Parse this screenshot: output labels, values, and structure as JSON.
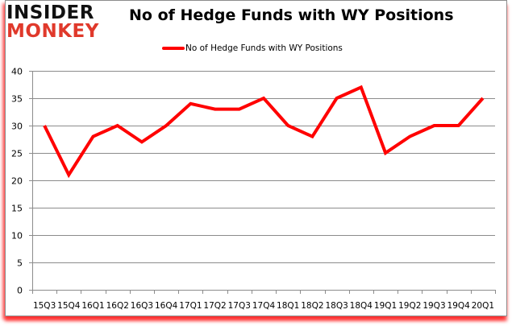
{
  "branding": {
    "logo_line1": "INSIDER",
    "logo_line2": "MONKEY"
  },
  "colors": {
    "series": "#ff0000",
    "logo_accent": "#e0392b",
    "grid": "#8c8c8c"
  },
  "chart_data": {
    "type": "line",
    "title": "No of Hedge Funds with WY Positions",
    "xlabel": "",
    "ylabel": "",
    "ylim": [
      0,
      40
    ],
    "yticks": [
      0,
      5,
      10,
      15,
      20,
      25,
      30,
      35,
      40
    ],
    "grid": true,
    "legend_position": "top",
    "categories": [
      "15Q3",
      "15Q4",
      "16Q1",
      "16Q2",
      "16Q3",
      "16Q4",
      "17Q1",
      "17Q2",
      "17Q3",
      "17Q4",
      "18Q1",
      "18Q2",
      "18Q3",
      "18Q4",
      "19Q1",
      "19Q2",
      "19Q3",
      "19Q4",
      "20Q1"
    ],
    "series": [
      {
        "name": "No of Hedge Funds with WY Positions",
        "color": "#ff0000",
        "values": [
          30,
          21,
          28,
          30,
          27,
          30,
          34,
          33,
          33,
          35,
          30,
          28,
          35,
          37,
          25,
          28,
          30,
          30,
          35
        ]
      }
    ]
  }
}
